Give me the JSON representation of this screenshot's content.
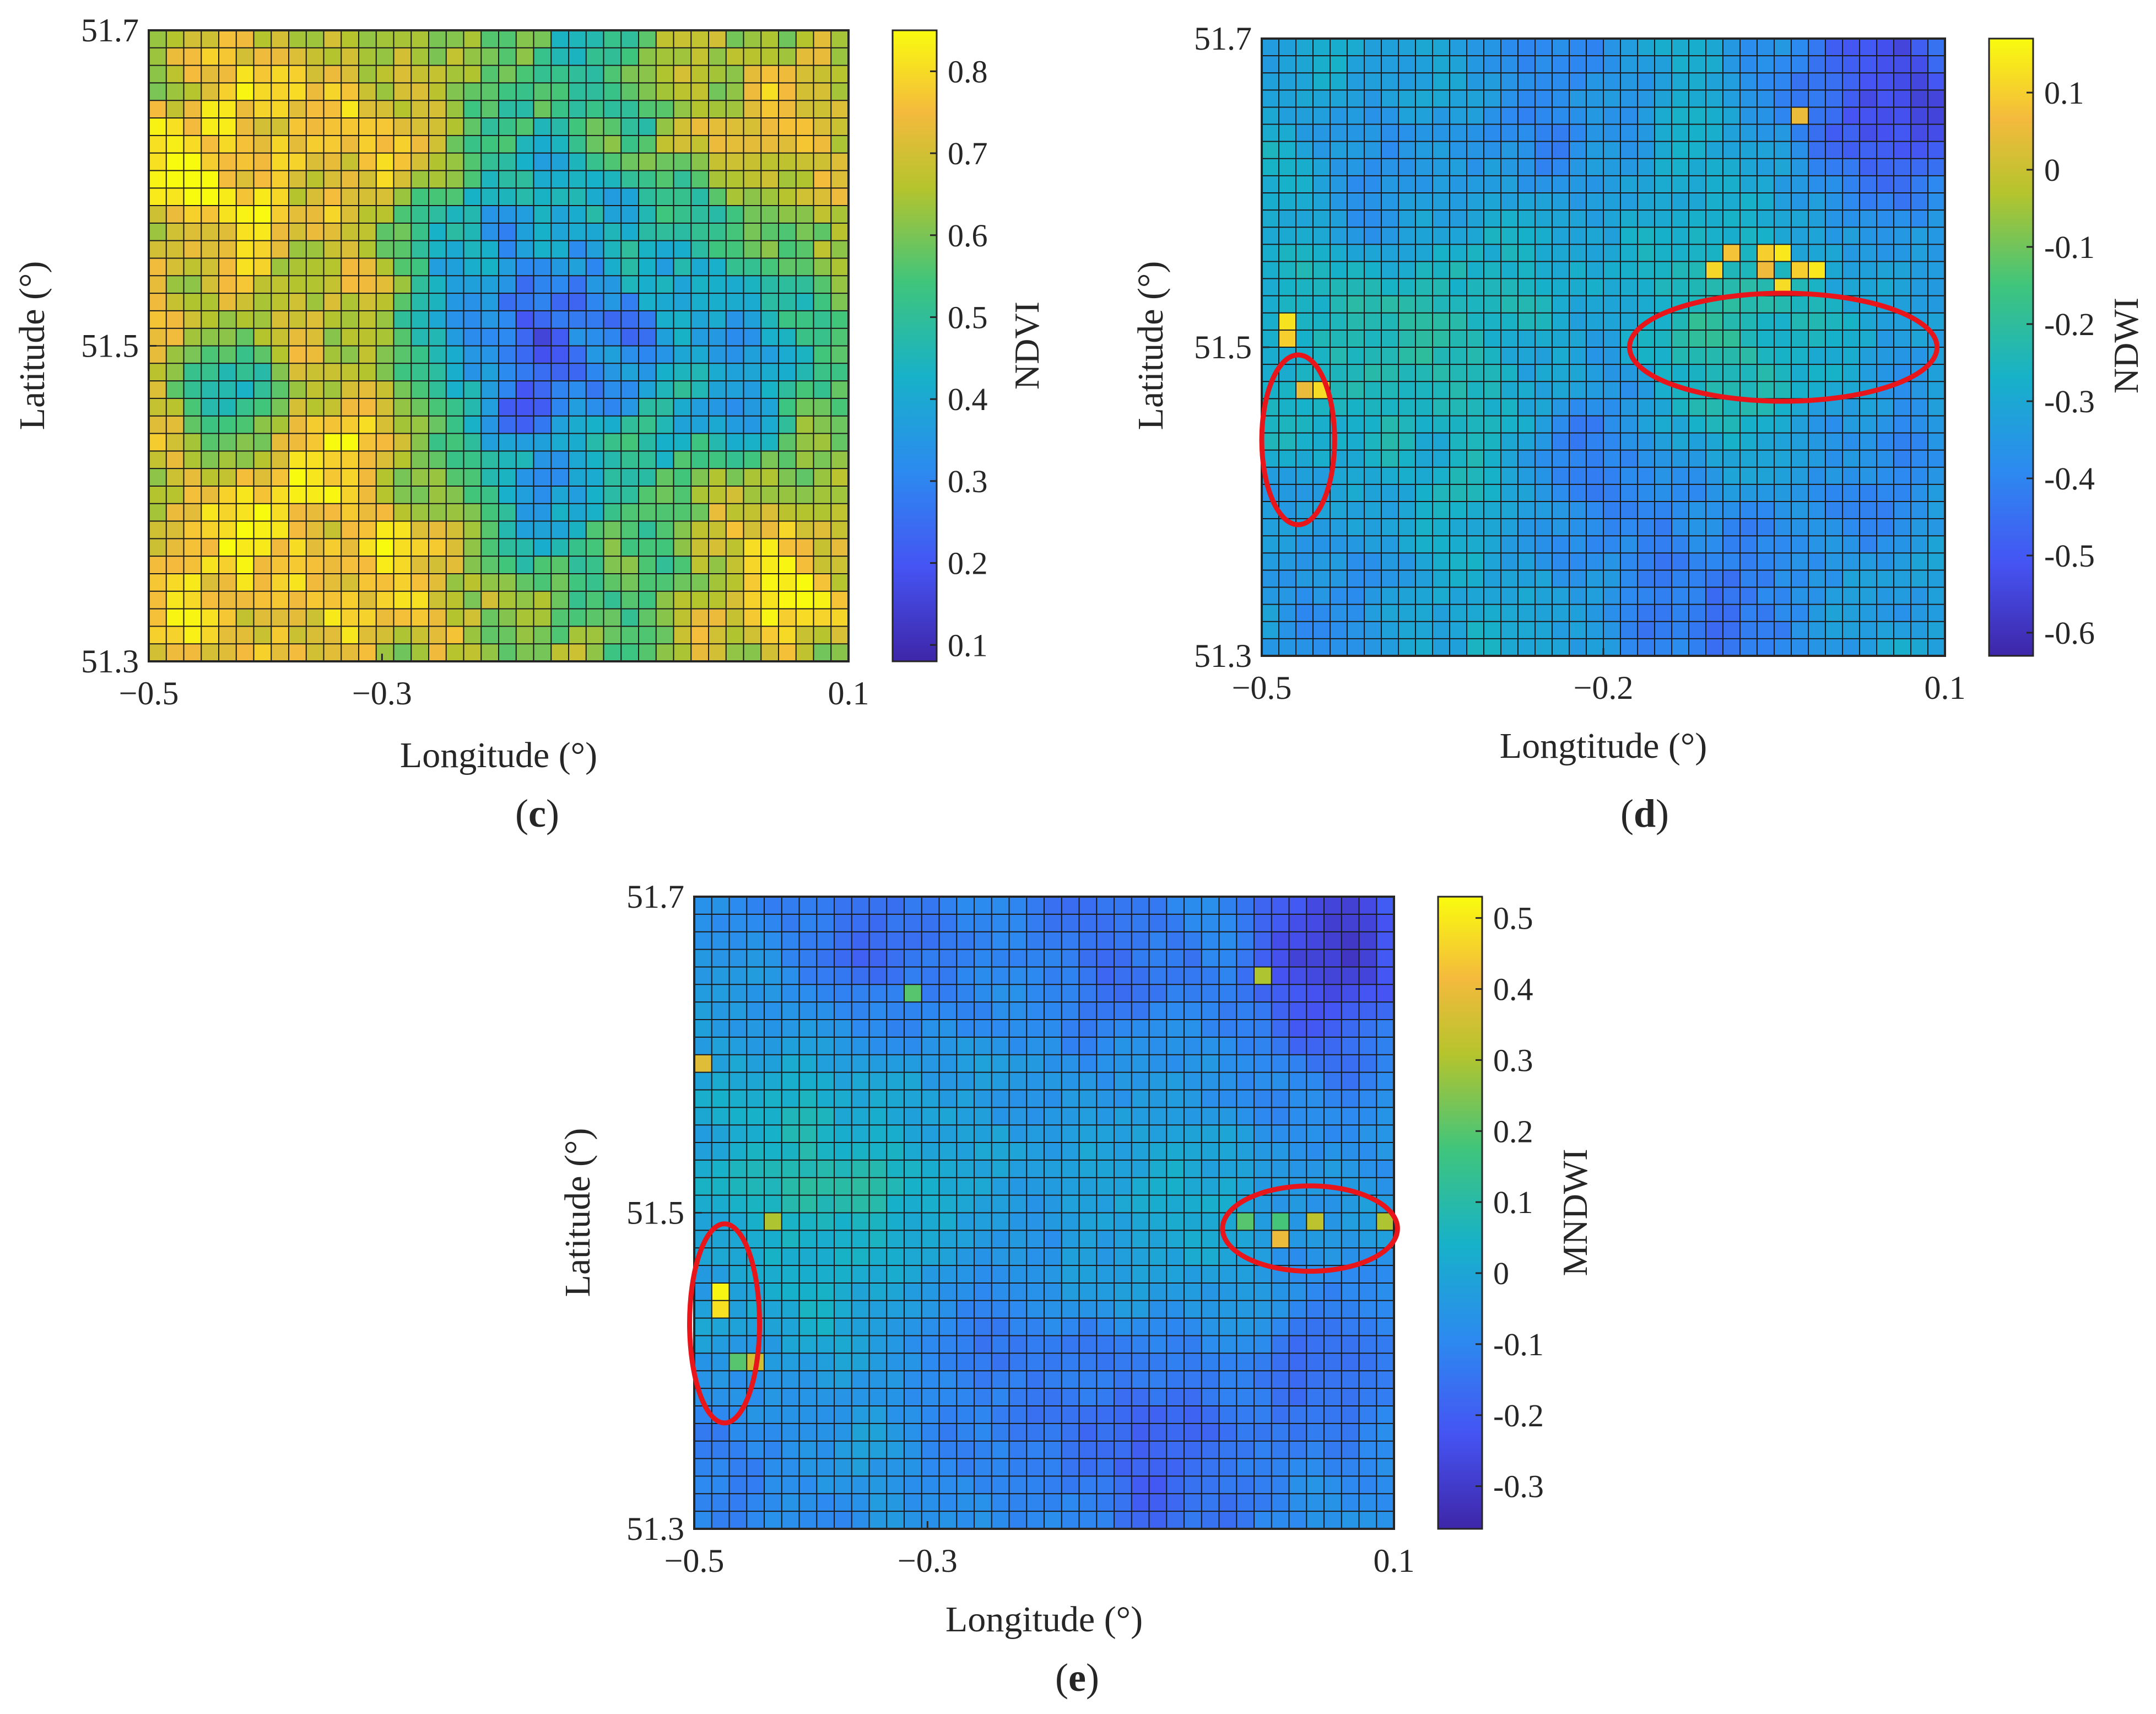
{
  "figure": {
    "description_free": true
  },
  "chart_data": [
    {
      "type": "heatmap",
      "panel_label": "c",
      "panel_text": [
        "(",
        "c",
        ")"
      ],
      "xlabel": "Longitude (°)",
      "ylabel": "Latitude (°)",
      "colorbar_title": "NDVI",
      "x_range": [
        -0.5,
        0.1
      ],
      "y_range": [
        51.3,
        51.7
      ],
      "x_ticks": [
        {
          "value": -0.5,
          "label": "−0.5"
        },
        {
          "value": -0.3,
          "label": "−0.3"
        },
        {
          "value": 0.1,
          "label": "0.1"
        }
      ],
      "y_ticks": [
        {
          "value": 51.7,
          "label": "51.7"
        },
        {
          "value": 51.5,
          "label": "51.5"
        },
        {
          "value": 51.3,
          "label": "51.3"
        }
      ],
      "color_range": [
        0.08,
        0.85
      ],
      "colorbar_ticks": [
        {
          "value": 0.8,
          "label": "0.8"
        },
        {
          "value": 0.7,
          "label": "0.7"
        },
        {
          "value": 0.6,
          "label": "0.6"
        },
        {
          "value": 0.5,
          "label": "0.5"
        },
        {
          "value": 0.4,
          "label": "0.4"
        },
        {
          "value": 0.3,
          "label": "0.3"
        },
        {
          "value": 0.2,
          "label": "0.2"
        },
        {
          "value": 0.1,
          "label": "0.1"
        }
      ],
      "grid_cols": 40,
      "grid_rows": 36,
      "field": {
        "base": 0.58,
        "noise": 0.13,
        "seed": 11,
        "features": [
          {
            "lon": -0.45,
            "lat": 51.62,
            "amp": 0.18,
            "sigma": 0.08
          },
          {
            "lon": 0.05,
            "lat": 51.64,
            "amp": 0.18,
            "sigma": 0.06
          },
          {
            "lon": -0.3,
            "lat": 51.64,
            "amp": 0.12,
            "sigma": 0.07
          },
          {
            "lon": -0.47,
            "lat": 51.35,
            "amp": 0.2,
            "sigma": 0.08
          },
          {
            "lon": -0.3,
            "lat": 51.34,
            "amp": 0.16,
            "sigma": 0.07
          },
          {
            "lon": 0.03,
            "lat": 51.36,
            "amp": 0.2,
            "sigma": 0.07
          },
          {
            "lon": -0.33,
            "lat": 51.44,
            "amp": 0.15,
            "sigma": 0.04
          },
          {
            "lon": -0.15,
            "lat": 51.49,
            "amp": -0.28,
            "sigma": 0.08
          },
          {
            "lon": 0.02,
            "lat": 51.5,
            "amp": -0.24,
            "sigma": 0.05
          },
          {
            "lon": -0.42,
            "lat": 51.47,
            "amp": -0.15,
            "sigma": 0.03
          },
          {
            "lon": -0.2,
            "lat": 51.55,
            "amp": -0.12,
            "sigma": 0.06
          }
        ]
      },
      "highlight_ellipses": []
    },
    {
      "type": "heatmap",
      "panel_label": "d",
      "panel_text": [
        "(",
        "d",
        ")"
      ],
      "xlabel": "Longtitude (°)",
      "ylabel": "Latitude (°)",
      "colorbar_title": "NDWI",
      "x_range": [
        -0.5,
        0.1
      ],
      "y_range": [
        51.3,
        51.7
      ],
      "x_ticks": [
        {
          "value": -0.5,
          "label": "−0.5"
        },
        {
          "value": -0.2,
          "label": "−0.2"
        },
        {
          "value": 0.1,
          "label": "0.1"
        }
      ],
      "y_ticks": [
        {
          "value": 51.7,
          "label": "51.7"
        },
        {
          "value": 51.5,
          "label": "51.5"
        },
        {
          "value": 51.3,
          "label": "51.3"
        }
      ],
      "color_range": [
        -0.63,
        0.17
      ],
      "colorbar_ticks": [
        {
          "value": 0.1,
          "label": "0.1"
        },
        {
          "value": 0.0,
          "label": "0"
        },
        {
          "value": -0.1,
          "label": "-0.1"
        },
        {
          "value": -0.2,
          "label": "-0.2"
        },
        {
          "value": -0.3,
          "label": "-0.3"
        },
        {
          "value": -0.4,
          "label": "-0.4"
        },
        {
          "value": -0.5,
          "label": "-0.5"
        },
        {
          "value": -0.6,
          "label": "-0.6"
        }
      ],
      "grid_cols": 40,
      "grid_rows": 36,
      "field": {
        "base": -0.3,
        "noise": 0.05,
        "seed": 23,
        "features": [
          {
            "lon": 0.05,
            "lat": 51.67,
            "amp": -0.25,
            "sigma": 0.06
          },
          {
            "lon": -0.4,
            "lat": 51.6,
            "amp": -0.12,
            "sigma": 0.05
          },
          {
            "lon": -0.25,
            "lat": 51.65,
            "amp": -0.1,
            "sigma": 0.05
          },
          {
            "lon": -0.38,
            "lat": 51.53,
            "amp": 0.1,
            "sigma": 0.08
          },
          {
            "lon": -0.1,
            "lat": 51.5,
            "amp": 0.1,
            "sigma": 0.06
          },
          {
            "lon": -0.2,
            "lat": 51.44,
            "amp": -0.12,
            "sigma": 0.05
          },
          {
            "lon": -0.1,
            "lat": 51.34,
            "amp": -0.14,
            "sigma": 0.06
          },
          {
            "lon": 0.06,
            "lat": 51.42,
            "amp": -0.1,
            "sigma": 0.05
          },
          {
            "lon": -0.45,
            "lat": 51.35,
            "amp": -0.08,
            "sigma": 0.05
          }
        ],
        "hot_cells": [
          {
            "col": 1,
            "row": 16,
            "value": 0.13
          },
          {
            "col": 1,
            "row": 17,
            "value": 0.1
          },
          {
            "col": 2,
            "row": 20,
            "value": 0.05
          },
          {
            "col": 3,
            "row": 20,
            "value": 0.12
          },
          {
            "col": 27,
            "row": 12,
            "value": 0.08
          },
          {
            "col": 26,
            "row": 13,
            "value": 0.11
          },
          {
            "col": 29,
            "row": 12,
            "value": 0.1
          },
          {
            "col": 30,
            "row": 12,
            "value": 0.14
          },
          {
            "col": 29,
            "row": 13,
            "value": 0.06
          },
          {
            "col": 30,
            "row": 14,
            "value": 0.12
          },
          {
            "col": 31,
            "row": 13,
            "value": 0.1
          },
          {
            "col": 32,
            "row": 13,
            "value": 0.14
          },
          {
            "col": 31,
            "row": 4,
            "value": 0.05
          }
        ]
      },
      "highlight_ellipses": [
        {
          "center": [
            -0.468,
            51.44
          ],
          "radius": [
            0.032,
            0.055
          ]
        },
        {
          "center": [
            -0.042,
            51.5
          ],
          "radius": [
            0.135,
            0.035
          ]
        }
      ]
    },
    {
      "type": "heatmap",
      "panel_label": "e",
      "panel_text": [
        "(",
        "e",
        ")"
      ],
      "xlabel": "Longitude (°)",
      "ylabel": "Latitude (°)",
      "colorbar_title": "MNDWI",
      "x_range": [
        -0.5,
        0.1
      ],
      "y_range": [
        51.3,
        51.7
      ],
      "x_ticks": [
        {
          "value": -0.5,
          "label": "−0.5"
        },
        {
          "value": -0.3,
          "label": "−0.3"
        },
        {
          "value": 0.1,
          "label": "0.1"
        }
      ],
      "y_ticks": [
        {
          "value": 51.7,
          "label": "51.7"
        },
        {
          "value": 51.5,
          "label": "51.5"
        },
        {
          "value": 51.3,
          "label": "51.3"
        }
      ],
      "color_range": [
        -0.36,
        0.53
      ],
      "colorbar_ticks": [
        {
          "value": 0.5,
          "label": "0.5"
        },
        {
          "value": 0.4,
          "label": "0.4"
        },
        {
          "value": 0.3,
          "label": "0.3"
        },
        {
          "value": 0.2,
          "label": "0.2"
        },
        {
          "value": 0.1,
          "label": "0.1"
        },
        {
          "value": 0.0,
          "label": "0"
        },
        {
          "value": -0.1,
          "label": "-0.1"
        },
        {
          "value": -0.2,
          "label": "-0.2"
        },
        {
          "value": -0.3,
          "label": "-0.3"
        }
      ],
      "grid_cols": 40,
      "grid_rows": 36,
      "field": {
        "base": -0.03,
        "noise": 0.045,
        "seed": 37,
        "features": [
          {
            "lon": 0.05,
            "lat": 51.67,
            "amp": -0.27,
            "sigma": 0.06
          },
          {
            "lon": -0.35,
            "lat": 51.66,
            "amp": -0.16,
            "sigma": 0.06
          },
          {
            "lon": -0.15,
            "lat": 51.67,
            "amp": -0.12,
            "sigma": 0.06
          },
          {
            "lon": -0.38,
            "lat": 51.53,
            "amp": 0.13,
            "sigma": 0.07
          },
          {
            "lon": -0.08,
            "lat": 51.5,
            "amp": 0.05,
            "sigma": 0.05
          },
          {
            "lon": -0.1,
            "lat": 51.34,
            "amp": -0.17,
            "sigma": 0.06
          },
          {
            "lon": -0.25,
            "lat": 51.4,
            "amp": -0.1,
            "sigma": 0.06
          },
          {
            "lon": 0.05,
            "lat": 51.4,
            "amp": -0.12,
            "sigma": 0.05
          },
          {
            "lon": -0.47,
            "lat": 51.34,
            "amp": -0.08,
            "sigma": 0.05
          }
        ],
        "hot_cells": [
          {
            "col": 1,
            "row": 22,
            "value": 0.52
          },
          {
            "col": 1,
            "row": 23,
            "value": 0.48
          },
          {
            "col": 2,
            "row": 26,
            "value": 0.2
          },
          {
            "col": 3,
            "row": 26,
            "value": 0.35
          },
          {
            "col": 0,
            "row": 9,
            "value": 0.38
          },
          {
            "col": 4,
            "row": 18,
            "value": 0.3
          },
          {
            "col": 31,
            "row": 18,
            "value": 0.2
          },
          {
            "col": 33,
            "row": 18,
            "value": 0.18
          },
          {
            "col": 33,
            "row": 19,
            "value": 0.4
          },
          {
            "col": 35,
            "row": 18,
            "value": 0.32
          },
          {
            "col": 39,
            "row": 18,
            "value": 0.3
          },
          {
            "col": 32,
            "row": 4,
            "value": 0.3
          },
          {
            "col": 12,
            "row": 5,
            "value": 0.2
          }
        ]
      },
      "highlight_ellipses": [
        {
          "center": [
            -0.474,
            51.43
          ],
          "radius": [
            0.03,
            0.063
          ]
        },
        {
          "center": [
            0.028,
            51.49
          ],
          "radius": [
            0.075,
            0.027
          ]
        }
      ]
    }
  ]
}
